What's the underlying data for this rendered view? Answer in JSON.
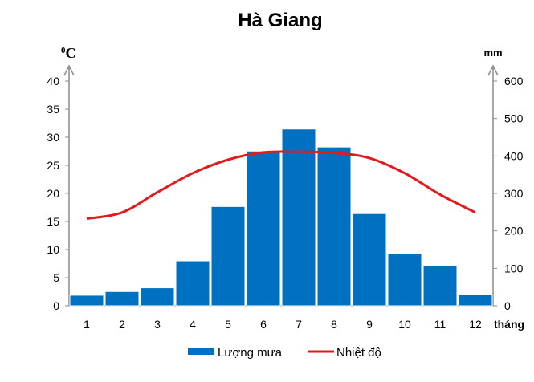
{
  "chart_data": {
    "type": "bar+line",
    "title": "Hà Giang",
    "categories": [
      "1",
      "2",
      "3",
      "4",
      "5",
      "6",
      "7",
      "8",
      "9",
      "10",
      "11",
      "12"
    ],
    "xlabel": "tháng",
    "left_axis": {
      "unit": "C",
      "unit_sup": "0",
      "ylim": [
        0,
        40
      ],
      "ticks": [
        "0",
        "5",
        "10",
        "15",
        "20",
        "25",
        "30",
        "35",
        "40"
      ]
    },
    "right_axis": {
      "unit": "mm",
      "ylim": [
        0,
        600
      ],
      "ticks": [
        "0",
        "100",
        "200",
        "300",
        "400",
        "500",
        "600"
      ]
    },
    "series": [
      {
        "name": "Lượng mưa",
        "type": "bar",
        "axis": "right",
        "color": "#0070C0",
        "values": [
          28,
          38,
          48,
          120,
          265,
          413,
          472,
          424,
          246,
          139,
          108,
          30
        ]
      },
      {
        "name": "Nhiệt độ",
        "type": "line",
        "axis": "left",
        "color": "#E31A1C",
        "values": [
          15.5,
          16.6,
          20.2,
          23.6,
          26.0,
          27.3,
          27.4,
          27.2,
          26.3,
          23.6,
          19.8,
          16.6
        ]
      }
    ],
    "grid": false,
    "legend": "bottom"
  }
}
